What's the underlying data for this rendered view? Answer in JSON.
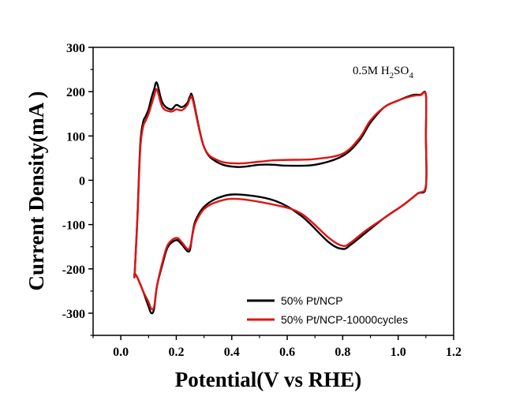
{
  "chart_data": {
    "type": "line",
    "xlabel": "Potential(V vs RHE)",
    "ylabel": "Current Density(mA )",
    "xlim": [
      -0.1,
      1.2
    ],
    "ylim": [
      -350,
      300
    ],
    "xticks": [
      "0.0",
      "0.2",
      "0.4",
      "0.6",
      "0.8",
      "1.0",
      "1.2"
    ],
    "yticks": [
      "300",
      "200",
      "100",
      "0",
      "-100",
      "-200",
      "-300"
    ],
    "xtick_values": [
      0.0,
      0.2,
      0.4,
      0.6,
      0.8,
      1.0,
      1.2
    ],
    "ytick_values": [
      300,
      200,
      100,
      0,
      -100,
      -200,
      -300
    ],
    "annotation": {
      "base": "0.5M H",
      "sub1": "2",
      "mid": "SO",
      "sub2": "4"
    },
    "legend_position": "bottom-right",
    "grid": false,
    "series": [
      {
        "name": "50% Pt/NCP",
        "color": "#000000",
        "x": [
          0.05,
          0.06,
          0.07,
          0.08,
          0.09,
          0.1,
          0.11,
          0.12,
          0.13,
          0.15,
          0.18,
          0.2,
          0.22,
          0.24,
          0.25,
          0.26,
          0.3,
          0.35,
          0.42,
          0.5,
          0.55,
          0.6,
          0.7,
          0.8,
          0.86,
          0.9,
          0.95,
          1.0,
          1.05,
          1.08,
          1.1,
          1.1,
          1.1,
          1.07,
          1.02,
          0.95,
          0.88,
          0.83,
          0.8,
          0.75,
          0.65,
          0.55,
          0.42,
          0.35,
          0.3,
          0.27,
          0.26,
          0.25,
          0.24,
          0.22,
          0.2,
          0.17,
          0.15,
          0.13,
          0.12,
          0.11,
          0.1,
          0.08,
          0.06,
          0.05
        ],
        "y": [
          -210,
          -80,
          80,
          130,
          145,
          160,
          185,
          205,
          220,
          175,
          160,
          170,
          165,
          175,
          190,
          185,
          75,
          40,
          30,
          35,
          35,
          33,
          35,
          55,
          90,
          130,
          165,
          180,
          192,
          193,
          193,
          100,
          -15,
          -30,
          -55,
          -85,
          -120,
          -145,
          -155,
          -140,
          -80,
          -45,
          -32,
          -40,
          -60,
          -90,
          -115,
          -155,
          -160,
          -145,
          -135,
          -150,
          -190,
          -240,
          -290,
          -300,
          -285,
          -250,
          -220,
          -210
        ]
      },
      {
        "name": "50% Pt/NCP-10000cycles",
        "color": "#e01414",
        "x": [
          0.05,
          0.06,
          0.07,
          0.08,
          0.09,
          0.1,
          0.11,
          0.12,
          0.13,
          0.15,
          0.18,
          0.2,
          0.22,
          0.24,
          0.25,
          0.26,
          0.3,
          0.35,
          0.42,
          0.5,
          0.55,
          0.6,
          0.7,
          0.8,
          0.86,
          0.9,
          0.95,
          1.0,
          1.05,
          1.08,
          1.1,
          1.1,
          1.1,
          1.07,
          1.02,
          0.95,
          0.88,
          0.83,
          0.8,
          0.75,
          0.65,
          0.55,
          0.42,
          0.35,
          0.3,
          0.27,
          0.26,
          0.25,
          0.24,
          0.22,
          0.2,
          0.17,
          0.15,
          0.13,
          0.12,
          0.11,
          0.1,
          0.08,
          0.06,
          0.05
        ],
        "y": [
          -210,
          -85,
          70,
          120,
          135,
          150,
          170,
          190,
          205,
          165,
          155,
          160,
          158,
          170,
          185,
          180,
          75,
          45,
          38,
          42,
          45,
          46,
          48,
          60,
          95,
          135,
          165,
          180,
          190,
          192,
          192,
          100,
          -12,
          -30,
          -55,
          -85,
          -115,
          -140,
          -148,
          -130,
          -75,
          -55,
          -42,
          -48,
          -65,
          -95,
          -118,
          -150,
          -155,
          -140,
          -130,
          -145,
          -185,
          -240,
          -285,
          -290,
          -275,
          -250,
          -220,
          -210
        ]
      }
    ]
  }
}
